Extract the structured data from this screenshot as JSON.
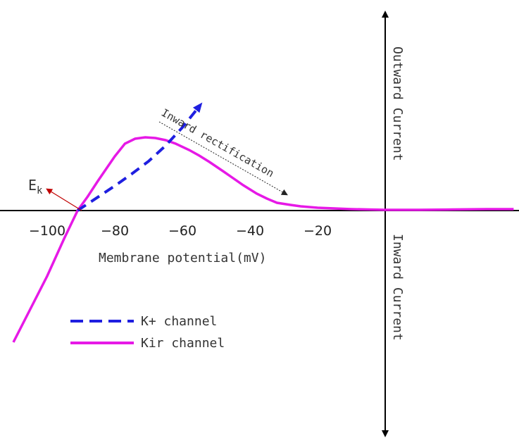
{
  "chart_data": {
    "type": "line",
    "title": "",
    "xlabel": "Membrane potential(mV)",
    "ylabel_top": "Outward Current",
    "ylabel_bottom": "Inward Current",
    "x_ticks": [
      -100,
      -80,
      -60,
      -40,
      -20
    ],
    "tick_labels": [
      "−100",
      "−80",
      "−60",
      "−40",
      "−20"
    ],
    "xlim": [
      -112,
      39
    ],
    "grid": false,
    "legend": "lower-left",
    "annotations": {
      "ek_label": "E",
      "ek_subscript": "k",
      "rectification_label": "Inward rectification"
    },
    "series": [
      {
        "name": "K+ channel",
        "style": "dashed",
        "color": "#1f1fe0",
        "x": [
          -91,
          -80,
          -75,
          -70,
          -65,
          -60,
          -55
        ],
        "y": [
          0,
          35,
          52,
          70,
          92,
          118,
          148
        ]
      },
      {
        "name": "Kir channel",
        "style": "solid",
        "color": "#e619e6",
        "x": [
          -110,
          -105,
          -100,
          -95,
          -91,
          -88,
          -85,
          -82,
          -80,
          -77,
          -74,
          -71,
          -68,
          -65,
          -62,
          -58,
          -55,
          -52,
          -48,
          -45,
          -42,
          -38,
          -35,
          -32,
          -28,
          -25,
          -20,
          -15,
          -10,
          -5,
          0,
          10,
          20,
          30,
          38
        ],
        "y": [
          -187,
          -140,
          -93,
          -40,
          0,
          20,
          42,
          63,
          77,
          95,
          102,
          104,
          103,
          100,
          95,
          86,
          78,
          69,
          56,
          46,
          36,
          24,
          17,
          11,
          8,
          6,
          4,
          3,
          2,
          1.5,
          1,
          1,
          1.5,
          2,
          2
        ]
      }
    ]
  }
}
